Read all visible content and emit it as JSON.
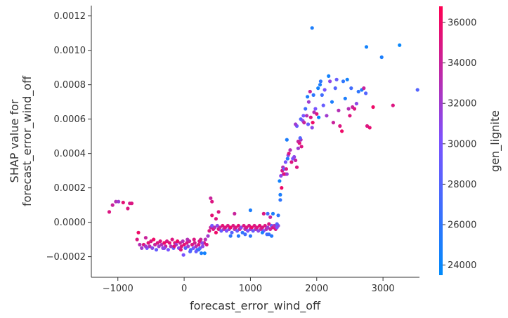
{
  "chart_data": {
    "type": "scatter",
    "title": "",
    "xlabel": "forecast_error_wind_off",
    "ylabel": "SHAP value for\nforecast_error_wind_off",
    "ylabel_lines": [
      "SHAP value for",
      "forecast_error_wind_off"
    ],
    "xlim": [
      -1400,
      3550
    ],
    "ylim": [
      -0.00032,
      0.00126
    ],
    "xticks": [
      -1000,
      0,
      1000,
      2000,
      3000
    ],
    "xtick_labels": [
      "−1000",
      "0",
      "1000",
      "2000",
      "3000"
    ],
    "yticks": [
      -0.0002,
      0.0,
      0.0002,
      0.0004,
      0.0006,
      0.0008,
      0.001,
      0.0012
    ],
    "ytick_labels": [
      "−0.0002",
      "0.0000",
      "0.0002",
      "0.0004",
      "0.0006",
      "0.0008",
      "0.0010",
      "0.0012"
    ],
    "grid": false,
    "colorbar": {
      "label": "gen_lignite",
      "range": [
        23500,
        36800
      ],
      "ticks": [
        24000,
        26000,
        28000,
        30000,
        32000,
        34000,
        36000
      ],
      "tick_labels": [
        "24000",
        "26000",
        "28000",
        "30000",
        "32000",
        "34000",
        "36000"
      ],
      "color_low": "#008bfb",
      "color_mid": "#7c52ff",
      "color_high": "#ff0052"
    },
    "points": [
      [
        -1130,
        6e-05,
        35000
      ],
      [
        -1080,
        0.0001,
        34000
      ],
      [
        -1030,
        0.00012,
        33000
      ],
      [
        -990,
        0.00012,
        32000
      ],
      [
        -920,
        0.000115,
        35500
      ],
      [
        -850,
        8e-05,
        35000
      ],
      [
        -820,
        0.00011,
        34500
      ],
      [
        -790,
        0.00011,
        35000
      ],
      [
        -710,
        -0.0001,
        35000
      ],
      [
        -690,
        -6e-05,
        36000
      ],
      [
        -670,
        -0.00013,
        33000
      ],
      [
        -640,
        -0.00015,
        32000
      ],
      [
        -610,
        -0.00013,
        35000
      ],
      [
        -580,
        -9e-05,
        34000
      ],
      [
        -560,
        -0.00015,
        30000
      ],
      [
        -540,
        -0.00012,
        35500
      ],
      [
        -520,
        -0.00014,
        33000
      ],
      [
        -500,
        -0.00011,
        35000
      ],
      [
        -480,
        -0.00015,
        31000
      ],
      [
        -460,
        -0.0001,
        36000
      ],
      [
        -440,
        -0.00013,
        34000
      ],
      [
        -420,
        -0.00016,
        29000
      ],
      [
        -400,
        -0.00012,
        35000
      ],
      [
        -380,
        -0.00014,
        32000
      ],
      [
        -360,
        -0.00011,
        35000
      ],
      [
        -340,
        -0.00013,
        33000
      ],
      [
        -320,
        -0.00015,
        31000
      ],
      [
        -300,
        -0.00012,
        36000
      ],
      [
        -280,
        -0.00014,
        34000
      ],
      [
        -260,
        -0.00011,
        35000
      ],
      [
        -240,
        -0.00016,
        30000
      ],
      [
        -220,
        -0.00012,
        35500
      ],
      [
        -200,
        -0.00014,
        33000
      ],
      [
        -180,
        -0.0001,
        35000
      ],
      [
        -160,
        -0.00015,
        29000
      ],
      [
        -140,
        -0.00012,
        35000
      ],
      [
        -120,
        -0.00013,
        32000
      ],
      [
        -100,
        -0.00011,
        36000
      ],
      [
        -80,
        -0.00015,
        31000
      ],
      [
        -60,
        -0.00012,
        34000
      ],
      [
        -40,
        -0.00014,
        35000
      ],
      [
        -20,
        -0.00011,
        33000
      ],
      [
        0,
        -0.00013,
        35500
      ],
      [
        20,
        -0.00015,
        28000
      ],
      [
        40,
        -0.00012,
        35000
      ],
      [
        60,
        -0.00014,
        32000
      ],
      [
        80,
        -0.00011,
        34000
      ],
      [
        100,
        -0.00016,
        27000
      ],
      [
        120,
        -0.00013,
        35000
      ],
      [
        140,
        -0.00015,
        30000
      ],
      [
        160,
        -0.00012,
        34500
      ],
      [
        180,
        -0.00014,
        33000
      ],
      [
        200,
        -0.00016,
        26000
      ],
      [
        220,
        -0.00013,
        35000
      ],
      [
        240,
        -0.00015,
        29000
      ],
      [
        260,
        -0.00018,
        25000
      ],
      [
        280,
        -0.00014,
        31000
      ],
      [
        300,
        -0.00012,
        35000
      ],
      [
        -10,
        -0.00019,
        30000
      ],
      [
        310,
        -0.00018,
        24500
      ],
      [
        -300,
        -0.00015,
        31000
      ],
      [
        -150,
        -0.00014,
        35500
      ],
      [
        50,
        -0.0001,
        33000
      ],
      [
        150,
        -0.0001,
        35000
      ],
      [
        250,
        -0.0001,
        34000
      ],
      [
        220,
        -0.00016,
        26500
      ],
      [
        270,
        -0.00012,
        31000
      ],
      [
        180,
        -0.00017,
        29000
      ],
      [
        320,
        -0.0001,
        33000
      ],
      [
        340,
        -0.00013,
        35000
      ],
      [
        360,
        -8e-05,
        32000
      ],
      [
        380,
        -5e-05,
        35000
      ],
      [
        400,
        -3e-05,
        34000
      ],
      [
        420,
        -2e-05,
        30000
      ],
      [
        440,
        -4e-05,
        35000
      ],
      [
        460,
        -3e-05,
        33000
      ],
      [
        480,
        -6e-05,
        36000
      ],
      [
        500,
        -2e-05,
        31000
      ],
      [
        520,
        -4e-05,
        35000
      ],
      [
        540,
        -3e-05,
        34000
      ],
      [
        560,
        -5e-05,
        29000
      ],
      [
        580,
        -2e-05,
        35500
      ],
      [
        600,
        -4e-05,
        33000
      ],
      [
        620,
        -3e-05,
        35000
      ],
      [
        640,
        -5e-05,
        30000
      ],
      [
        660,
        -2e-05,
        35000
      ],
      [
        680,
        -4e-05,
        32000
      ],
      [
        700,
        -3e-05,
        36000
      ],
      [
        720,
        -6e-05,
        28000
      ],
      [
        740,
        -2e-05,
        35000
      ],
      [
        760,
        -4e-05,
        33000
      ],
      [
        780,
        -3e-05,
        35000
      ],
      [
        800,
        -5e-05,
        29000
      ],
      [
        820,
        -2e-05,
        35500
      ],
      [
        840,
        -4e-05,
        34000
      ],
      [
        860,
        -3e-05,
        31000
      ],
      [
        880,
        -6e-05,
        26000
      ],
      [
        900,
        -2e-05,
        35000
      ],
      [
        920,
        -4e-05,
        33000
      ],
      [
        940,
        -3e-05,
        35000
      ],
      [
        960,
        -5e-05,
        30000
      ],
      [
        980,
        -2e-05,
        35000
      ],
      [
        1000,
        -4e-05,
        32000
      ],
      [
        1020,
        -3e-05,
        36000
      ],
      [
        1040,
        -5e-05,
        29000
      ],
      [
        1060,
        -2e-05,
        35000
      ],
      [
        1080,
        -4e-05,
        33000
      ],
      [
        1100,
        -3e-05,
        35000
      ],
      [
        1120,
        -5e-05,
        31000
      ],
      [
        1140,
        -2e-05,
        35500
      ],
      [
        1160,
        -4e-05,
        34000
      ],
      [
        1180,
        -3e-05,
        35000
      ],
      [
        1200,
        -5e-05,
        30000
      ],
      [
        1220,
        -2e-05,
        35000
      ],
      [
        1240,
        -4e-05,
        33000
      ],
      [
        1260,
        -3e-05,
        32000
      ],
      [
        1280,
        -1e-05,
        35000
      ],
      [
        1300,
        -4e-05,
        34000
      ],
      [
        1320,
        -2e-05,
        29000
      ],
      [
        1340,
        -3e-05,
        35000
      ],
      [
        1360,
        -2e-05,
        33000
      ],
      [
        1380,
        -4e-05,
        35000
      ],
      [
        1400,
        -3e-05,
        30000
      ],
      [
        1420,
        -2e-05,
        31000
      ],
      [
        700,
        -8e-05,
        26000
      ],
      [
        820,
        -8e-05,
        25500
      ],
      [
        920,
        -7e-05,
        27000
      ],
      [
        1000,
        -8e-05,
        26000
      ],
      [
        1180,
        -6e-05,
        25000
      ],
      [
        1280,
        -7e-05,
        26500
      ],
      [
        1320,
        -8e-05,
        25500
      ],
      [
        1250,
        -7e-05,
        27000
      ],
      [
        1400,
        -1e-05,
        28000
      ],
      [
        1420,
        4e-05,
        26000
      ],
      [
        1340,
        5e-05,
        25000
      ],
      [
        1260,
        5e-05,
        27000
      ],
      [
        1300,
        3e-05,
        34000
      ],
      [
        1000,
        7e-05,
        25000
      ],
      [
        760,
        5e-05,
        34000
      ],
      [
        520,
        6e-05,
        35000
      ],
      [
        420,
        4e-05,
        35500
      ],
      [
        480,
        2e-05,
        35000
      ],
      [
        420,
        0.00012,
        35000
      ],
      [
        400,
        0.00014,
        34000
      ],
      [
        1450,
        0.00013,
        26000
      ],
      [
        1450,
        0.00016,
        25000
      ],
      [
        1440,
        0.00024,
        24500
      ],
      [
        1460,
        0.00027,
        31000
      ],
      [
        1470,
        0.0002,
        36000
      ],
      [
        1480,
        0.0003,
        35000
      ],
      [
        1490,
        0.00032,
        33000
      ],
      [
        1500,
        0.00028,
        34000
      ],
      [
        1510,
        0.00031,
        29000
      ],
      [
        1520,
        0.00028,
        35500
      ],
      [
        1530,
        0.00035,
        30000
      ],
      [
        1540,
        0.00031,
        35000
      ],
      [
        1550,
        0.00028,
        32000
      ],
      [
        1560,
        0.00037,
        25500
      ],
      [
        1570,
        0.00039,
        31000
      ],
      [
        1580,
        0.0004,
        35000
      ],
      [
        1600,
        0.00042,
        33000
      ],
      [
        1620,
        0.00035,
        35000
      ],
      [
        1640,
        0.00037,
        30000
      ],
      [
        1660,
        0.00038,
        31000
      ],
      [
        1680,
        0.00036,
        34000
      ],
      [
        1700,
        0.00032,
        35000
      ],
      [
        1720,
        0.00043,
        32000
      ],
      [
        1740,
        0.00046,
        35500
      ],
      [
        1760,
        0.00048,
        33000
      ],
      [
        1720,
        0.00047,
        34000
      ],
      [
        1770,
        0.00044,
        35000
      ],
      [
        1750,
        0.00049,
        28000
      ],
      [
        1550,
        0.00048,
        25000
      ],
      [
        1700,
        0.00056,
        29000
      ],
      [
        1680,
        0.00057,
        32000
      ],
      [
        1760,
        0.0006,
        28000
      ],
      [
        1790,
        0.00059,
        31000
      ],
      [
        1800,
        0.00062,
        30000
      ],
      [
        1810,
        0.00058,
        34000
      ],
      [
        1830,
        0.00066,
        27000
      ],
      [
        1850,
        0.00062,
        33000
      ],
      [
        1860,
        0.00073,
        25000
      ],
      [
        1870,
        0.00057,
        29000
      ],
      [
        1880,
        0.0007,
        32000
      ],
      [
        1900,
        0.00076,
        34000
      ],
      [
        1910,
        0.00061,
        35000
      ],
      [
        1930,
        0.00055,
        31000
      ],
      [
        1940,
        0.00058,
        36000
      ],
      [
        1950,
        0.00074,
        26000
      ],
      [
        1960,
        0.00064,
        33000
      ],
      [
        1980,
        0.00066,
        30000
      ],
      [
        2000,
        0.00063,
        35000
      ],
      [
        2020,
        0.00078,
        24500
      ],
      [
        2030,
        0.00061,
        24000
      ],
      [
        2050,
        0.0008,
        25000
      ],
      [
        2060,
        0.00082,
        26000
      ],
      [
        2080,
        0.00074,
        27000
      ],
      [
        2100,
        0.00068,
        29000
      ],
      [
        2120,
        0.00077,
        30000
      ],
      [
        2150,
        0.00062,
        32000
      ],
      [
        2180,
        0.00085,
        24500
      ],
      [
        2200,
        0.00082,
        31000
      ],
      [
        2230,
        0.0007,
        25000
      ],
      [
        2250,
        0.00058,
        34000
      ],
      [
        2280,
        0.00078,
        28000
      ],
      [
        2300,
        0.00083,
        29000
      ],
      [
        2330,
        0.00065,
        33000
      ],
      [
        2350,
        0.00056,
        35000
      ],
      [
        2380,
        0.00053,
        36000
      ],
      [
        2400,
        0.00082,
        26000
      ],
      [
        2430,
        0.00072,
        25000
      ],
      [
        2460,
        0.00083,
        24500
      ],
      [
        2480,
        0.00066,
        33000
      ],
      [
        2500,
        0.00062,
        35000
      ],
      [
        2520,
        0.00078,
        27000
      ],
      [
        2540,
        0.00067,
        34000
      ],
      [
        2570,
        0.00066,
        35000
      ],
      [
        2600,
        0.00069,
        31000
      ],
      [
        2630,
        0.00076,
        26000
      ],
      [
        2680,
        0.00077,
        25000
      ],
      [
        2710,
        0.00078,
        34000
      ],
      [
        2740,
        0.00075,
        28000
      ],
      [
        2760,
        0.00056,
        35000
      ],
      [
        2800,
        0.00055,
        35500
      ],
      [
        2850,
        0.00067,
        36000
      ],
      [
        2750,
        0.00102,
        24500
      ],
      [
        2980,
        0.00096,
        25000
      ],
      [
        3150,
        0.00068,
        35000
      ],
      [
        3250,
        0.00103,
        24000
      ],
      [
        3520,
        0.00077,
        28000
      ],
      [
        1930,
        0.00113,
        25000
      ],
      [
        1200,
        5e-05,
        35000
      ],
      [
        -50,
        -0.00016,
        35000
      ],
      [
        -580,
        -0.00014,
        32000
      ],
      [
        90,
        -0.00017,
        28000
      ],
      [
        230,
        -0.00011,
        35000
      ]
    ]
  }
}
